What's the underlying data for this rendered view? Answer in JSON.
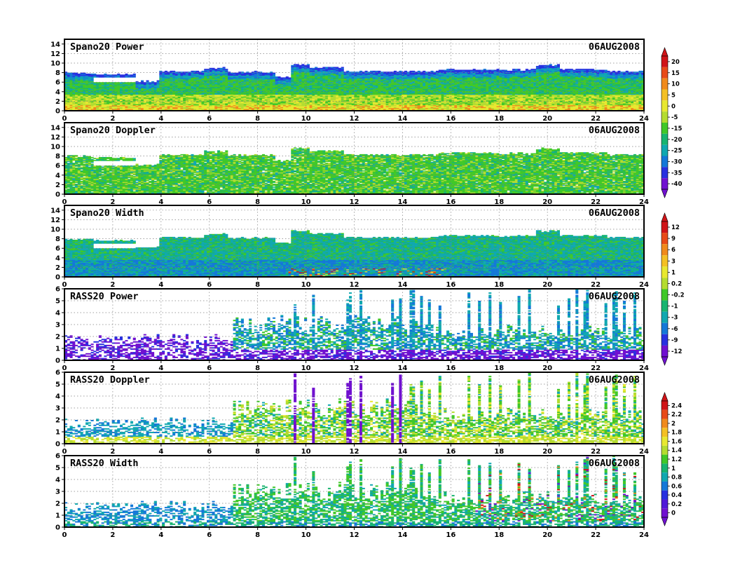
{
  "chart_data": [
    {
      "type": "heatmap",
      "title": "Spano20 Power",
      "date": "06AUG2008",
      "x_ticks": [
        "0",
        "2",
        "4",
        "6",
        "8",
        "10",
        "12",
        "14",
        "16",
        "18",
        "20",
        "22",
        "24"
      ],
      "xlim": [
        0,
        24
      ],
      "y_ticks": [
        "0",
        "2",
        "4",
        "6",
        "8",
        "10",
        "12",
        "14"
      ],
      "ylim": [
        0,
        15
      ],
      "grid": true,
      "colorbar": "power"
    },
    {
      "type": "heatmap",
      "title": "Spano20 Doppler",
      "date": "06AUG2008",
      "x_ticks": [
        "0",
        "2",
        "4",
        "6",
        "8",
        "10",
        "12",
        "14",
        "16",
        "18",
        "20",
        "22",
        "24"
      ],
      "xlim": [
        0,
        24
      ],
      "y_ticks": [
        "0",
        "2",
        "4",
        "6",
        "8",
        "10",
        "12",
        "14"
      ],
      "ylim": [
        0,
        15
      ],
      "grid": true,
      "colorbar": "power"
    },
    {
      "type": "heatmap",
      "title": "Spano20 Width",
      "date": "06AUG2008",
      "x_ticks": [
        "0",
        "2",
        "4",
        "6",
        "8",
        "10",
        "12",
        "14",
        "16",
        "18",
        "20",
        "22",
        "24"
      ],
      "xlim": [
        0,
        24
      ],
      "y_ticks": [
        "0",
        "2",
        "4",
        "6",
        "8",
        "10",
        "12",
        "14"
      ],
      "ylim": [
        0,
        15
      ],
      "grid": true,
      "colorbar": "width"
    },
    {
      "type": "heatmap",
      "title": "RASS20 Power",
      "date": "06AUG2008",
      "x_ticks": [
        "0",
        "2",
        "4",
        "6",
        "8",
        "10",
        "12",
        "14",
        "16",
        "18",
        "20",
        "22",
        "24"
      ],
      "xlim": [
        0,
        24
      ],
      "y_ticks": [
        "0",
        "1",
        "2",
        "3",
        "4",
        "5",
        "6"
      ],
      "ylim": [
        0,
        6
      ],
      "grid": true,
      "colorbar": "width"
    },
    {
      "type": "heatmap",
      "title": "RASS20 Doppler",
      "date": "06AUG2008",
      "x_ticks": [
        "0",
        "2",
        "4",
        "6",
        "8",
        "10",
        "12",
        "14",
        "16",
        "18",
        "20",
        "22",
        "24"
      ],
      "xlim": [
        0,
        24
      ],
      "y_ticks": [
        "0",
        "1",
        "2",
        "3",
        "4",
        "5",
        "6"
      ],
      "ylim": [
        0,
        6
      ],
      "grid": true,
      "colorbar": "rass"
    },
    {
      "type": "heatmap",
      "title": "RASS20 Width",
      "date": "06AUG2008",
      "x_ticks": [
        "0",
        "2",
        "4",
        "6",
        "8",
        "10",
        "12",
        "14",
        "16",
        "18",
        "20",
        "22",
        "24"
      ],
      "xlim": [
        0,
        24
      ],
      "y_ticks": [
        "0",
        "1",
        "2",
        "3",
        "4",
        "5",
        "6"
      ],
      "ylim": [
        0,
        6
      ],
      "grid": true,
      "colorbar": "rass"
    }
  ],
  "colorbars": {
    "power": {
      "labels": [
        "20",
        "15",
        "10",
        "5",
        "0",
        "-5",
        "-15",
        "-20",
        "-25",
        "-30",
        "-35",
        "-40"
      ],
      "colors": [
        "#d01418",
        "#e84a18",
        "#f08a1c",
        "#f4c024",
        "#e8e830",
        "#b4dc30",
        "#40c828",
        "#18b470",
        "#10a8b0",
        "#1478d8",
        "#2830e0",
        "#7010d0"
      ]
    },
    "width": {
      "labels": [
        "12",
        "9",
        "6",
        "3",
        "1",
        "0.2",
        "-0.2",
        "-1",
        "-3",
        "-6",
        "-9",
        "-12"
      ],
      "colors": [
        "#d01418",
        "#e84a18",
        "#f08a1c",
        "#f4c024",
        "#e8e830",
        "#b4dc30",
        "#40c828",
        "#18b470",
        "#10a8b0",
        "#1478d8",
        "#2830e0",
        "#7010d0"
      ]
    },
    "rass": {
      "labels": [
        "2.4",
        "2.2",
        "2",
        "1.8",
        "1.6",
        "1.4",
        "1.2",
        "1",
        "0.8",
        "0.6",
        "0.4",
        "0.2",
        "0"
      ],
      "colors": [
        "#d01418",
        "#e84a18",
        "#f08a1c",
        "#f4c024",
        "#e8e830",
        "#b4dc30",
        "#40c828",
        "#18b470",
        "#10a8b0",
        "#1478d8",
        "#2830e0",
        "#5018d8",
        "#7010d0"
      ]
    }
  },
  "palette": {
    "red": "#d01418",
    "orange": "#f08a1c",
    "yellow": "#e8e830",
    "lime": "#b4dc30",
    "green": "#40c828",
    "teal": "#18b470",
    "cyan": "#10a8b0",
    "blue": "#1478d8",
    "indigo": "#2830e0",
    "violet": "#7010d0",
    "grid": "#808080"
  }
}
